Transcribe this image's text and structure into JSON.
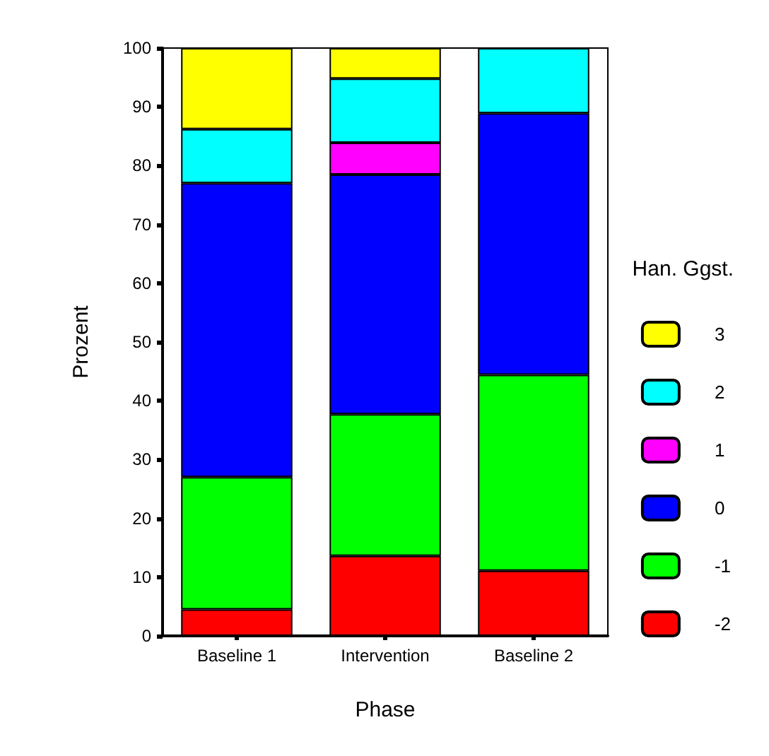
{
  "chart_data": {
    "type": "bar",
    "stacked": true,
    "xlabel": "Phase",
    "ylabel": "Prozent",
    "legend_title": "Han. Ggst.",
    "legend": "right",
    "grid": false,
    "categories": [
      "Baseline 1",
      "Intervention",
      "Baseline 2"
    ],
    "series": [
      {
        "name": "-2",
        "color": "#ff0000",
        "values": [
          4.5,
          13.6,
          11.1
        ]
      },
      {
        "name": "-1",
        "color": "#00ff00",
        "values": [
          22.5,
          24.1,
          33.3
        ]
      },
      {
        "name": "0",
        "color": "#0000ff",
        "values": [
          50.0,
          40.8,
          44.5
        ]
      },
      {
        "name": "1",
        "color": "#ff00ff",
        "values": [
          null,
          5.4,
          null
        ]
      },
      {
        "name": "2",
        "color": "#00ffff",
        "values": [
          9.2,
          10.9,
          11.1
        ]
      },
      {
        "name": "3",
        "color": "#ffff00",
        "values": [
          13.8,
          5.2,
          null
        ]
      }
    ],
    "ylim": [
      0,
      100
    ],
    "yticks": [
      0,
      10,
      20,
      30,
      40,
      50,
      60,
      70,
      80,
      90,
      100
    ]
  }
}
